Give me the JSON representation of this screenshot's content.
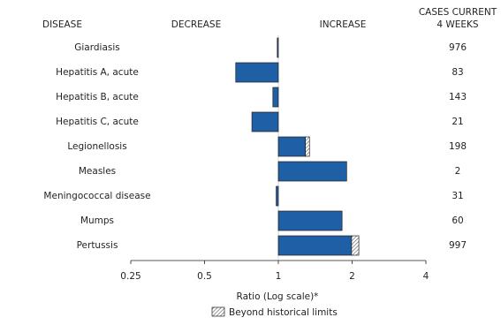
{
  "chart_data": {
    "type": "bar",
    "orientation": "horizontal",
    "column_headers": {
      "disease": "DISEASE",
      "decrease": "DECREASE",
      "increase": "INCREASE",
      "cases": [
        "CASES CURRENT",
        "4 WEEKS"
      ]
    },
    "categories": [
      "Giardiasis",
      "Hepatitis A, acute",
      "Hepatitis B, acute",
      "Hepatitis C, acute",
      "Legionellosis",
      "Measles",
      "Meningococcal disease",
      "Mumps",
      "Pertussis"
    ],
    "values": [
      0.99,
      0.67,
      0.95,
      0.78,
      1.34,
      1.9,
      0.98,
      1.82,
      2.13
    ],
    "historical_limits": [
      null,
      null,
      null,
      null,
      1.29,
      null,
      null,
      null,
      1.99
    ],
    "cases": [
      976,
      83,
      143,
      21,
      198,
      2,
      31,
      60,
      997
    ],
    "color": "#1f5fa6",
    "xlim": [
      0.25,
      4
    ],
    "xticks": [
      0.25,
      0.5,
      1,
      2,
      4
    ],
    "log_scale": true,
    "baseline": 1,
    "x_label": "Ratio (Log scale)*",
    "legend": {
      "label": "Beyond historical limits"
    }
  }
}
